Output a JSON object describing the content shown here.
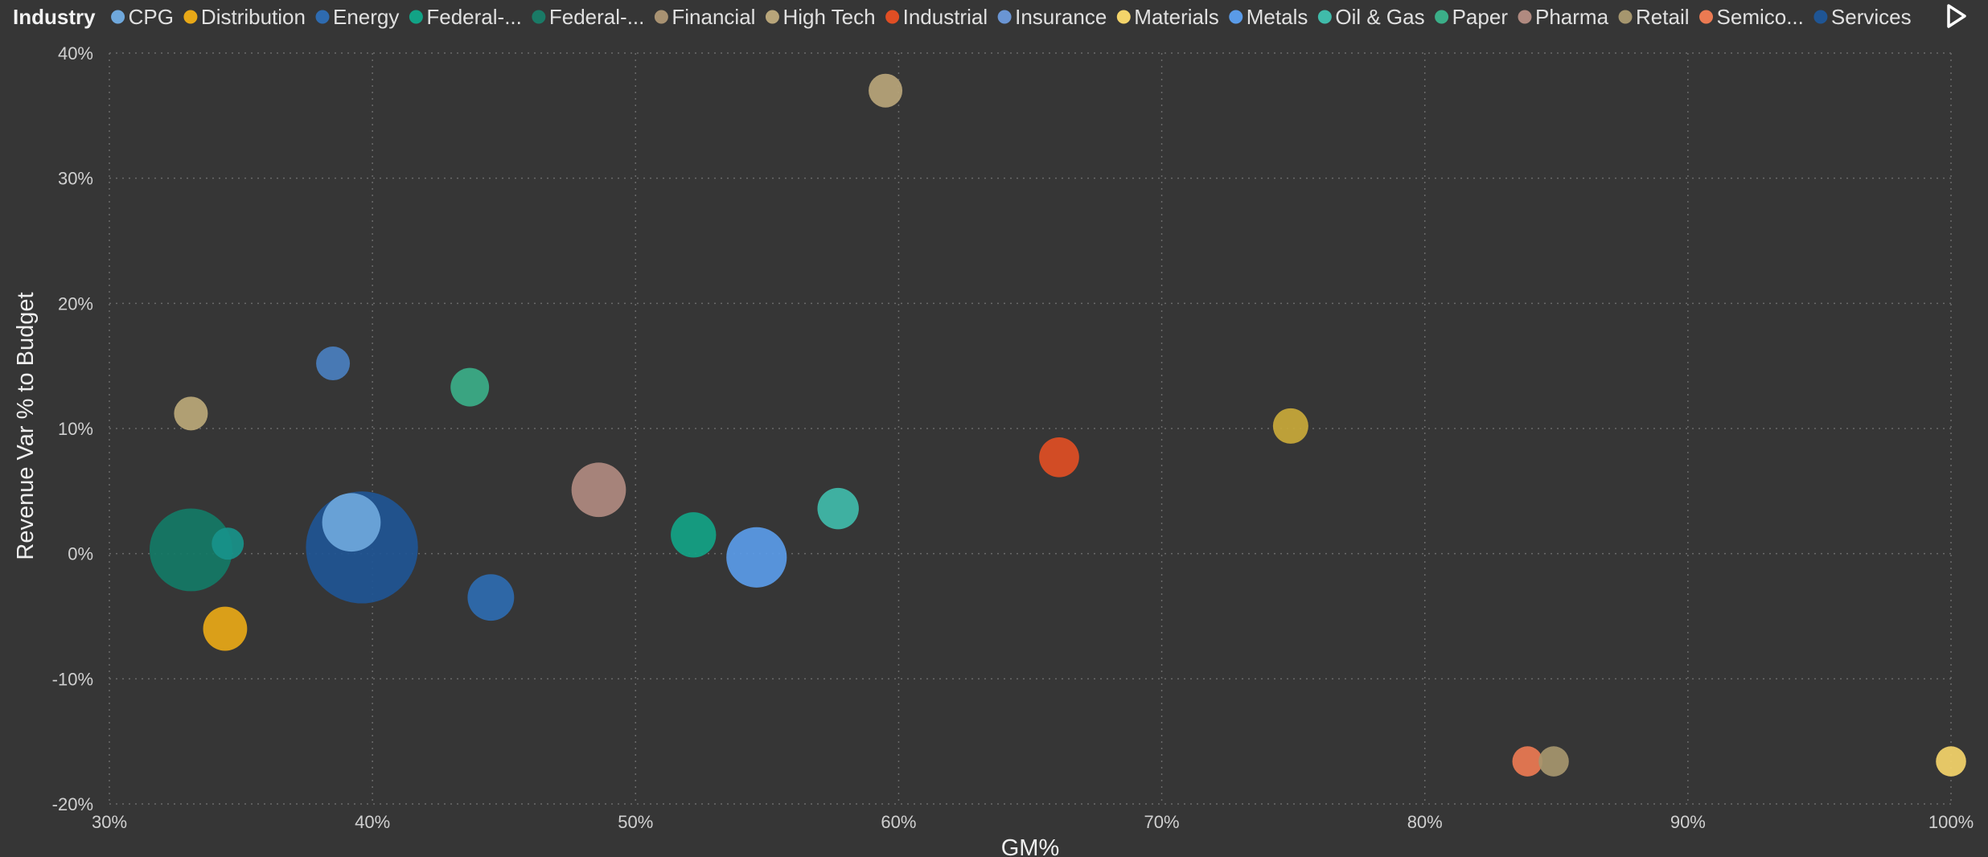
{
  "chart_data": {
    "type": "scatter",
    "variant": "bubble",
    "title": "",
    "xlabel": "GM%",
    "ylabel": "Revenue Var % to Budget",
    "xlim": [
      0.3,
      1.0
    ],
    "ylim": [
      -0.2,
      0.4
    ],
    "x_ticks": [
      0.3,
      0.4,
      0.5,
      0.6,
      0.7,
      0.8,
      0.9,
      1.0
    ],
    "x_tick_labels": [
      "30%",
      "40%",
      "50%",
      "60%",
      "70%",
      "80%",
      "90%",
      "100%"
    ],
    "y_ticks": [
      0.4,
      0.3,
      0.2,
      0.1,
      0.0,
      -0.1,
      -0.2
    ],
    "y_tick_labels": [
      "40%",
      "30%",
      "20%",
      "10%",
      "0%",
      "-10%",
      "-20%"
    ],
    "grid": true,
    "legend": {
      "title": "Industry",
      "placement": "top",
      "entries": [
        {
          "label": "CPG",
          "color": "#6FA8DC"
        },
        {
          "label": "Distribution",
          "color": "#E8A817"
        },
        {
          "label": "Energy",
          "color": "#2E6BB0"
        },
        {
          "label": "Federal-...",
          "color": "#12A386"
        },
        {
          "label": "Federal-...",
          "color": "#1A7A66"
        },
        {
          "label": "Financial",
          "color": "#A89272"
        },
        {
          "label": "High Tech",
          "color": "#B8A57A"
        },
        {
          "label": "Industrial",
          "color": "#E04E24"
        },
        {
          "label": "Insurance",
          "color": "#6A95D4"
        },
        {
          "label": "Materials",
          "color": "#F4D46A"
        },
        {
          "label": "Metals",
          "color": "#5A9BE8"
        },
        {
          "label": "Oil & Gas",
          "color": "#40BBAA"
        },
        {
          "label": "Paper",
          "color": "#3BAE88"
        },
        {
          "label": "Pharma",
          "color": "#B08A80"
        },
        {
          "label": "Retail",
          "color": "#A6966E"
        },
        {
          "label": "Semico...",
          "color": "#EB7A52"
        },
        {
          "label": "Services",
          "color": "#1F5594"
        }
      ]
    },
    "points": [
      {
        "series": "High Tech",
        "x": 0.595,
        "y": 0.37,
        "size": 1.0,
        "color": "#B8A57A"
      },
      {
        "series": "Energy",
        "x": 0.385,
        "y": 0.152,
        "size": 1.0,
        "color": "#4A7FBF"
      },
      {
        "series": "Paper",
        "x": 0.437,
        "y": 0.133,
        "size": 1.3,
        "color": "#3BAE88"
      },
      {
        "series": "Financial",
        "x": 0.331,
        "y": 0.112,
        "size": 1.0,
        "color": "#BBA878"
      },
      {
        "series": "Materials",
        "x": 0.749,
        "y": 0.102,
        "size": 1.1,
        "color": "#C9A93A"
      },
      {
        "series": "Industrial",
        "x": 0.661,
        "y": 0.077,
        "size": 1.4,
        "color": "#E04E24"
      },
      {
        "series": "Pharma",
        "x": 0.486,
        "y": 0.051,
        "size": 2.6,
        "color": "#B08A80"
      },
      {
        "series": "Oil & Gas",
        "x": 0.577,
        "y": 0.036,
        "size": 1.5,
        "color": "#40BBAA"
      },
      {
        "series": "Federal-...",
        "x": 0.522,
        "y": 0.015,
        "size": 1.8,
        "color": "#12A386"
      },
      {
        "series": "Federal-...",
        "x": 0.331,
        "y": 0.003,
        "size": 6.0,
        "color": "#147A66"
      },
      {
        "series": "Oil & Gas",
        "x": 0.345,
        "y": 0.008,
        "size": 0.9,
        "color": "#18938A"
      },
      {
        "series": "Services",
        "x": 0.396,
        "y": 0.005,
        "size": 11.0,
        "color": "#1F5594"
      },
      {
        "series": "CPG",
        "x": 0.392,
        "y": 0.025,
        "size": 3.0,
        "color": "#6FA8DC"
      },
      {
        "series": "Metals",
        "x": 0.546,
        "y": -0.003,
        "size": 3.2,
        "color": "#5A9BE8"
      },
      {
        "series": "Energy",
        "x": 0.445,
        "y": -0.035,
        "size": 1.9,
        "color": "#2E6BB0"
      },
      {
        "series": "Distribution",
        "x": 0.344,
        "y": -0.06,
        "size": 1.7,
        "color": "#E8A817"
      },
      {
        "series": "Semico...",
        "x": 0.839,
        "y": -0.166,
        "size": 0.8,
        "color": "#EB7A52"
      },
      {
        "series": "Retail",
        "x": 0.849,
        "y": -0.166,
        "size": 0.8,
        "color": "#A6966E"
      },
      {
        "series": "Materials",
        "x": 1.0,
        "y": -0.166,
        "size": 0.8,
        "color": "#F4D46A"
      }
    ]
  },
  "legend_next_icon": "play-triangle-icon"
}
